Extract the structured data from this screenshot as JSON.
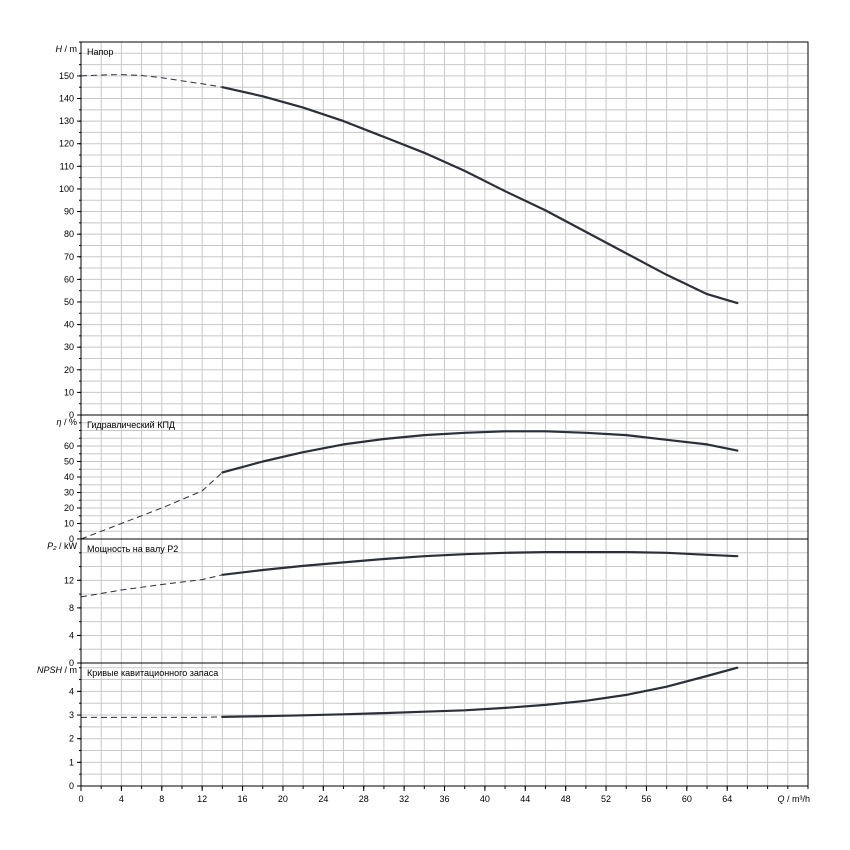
{
  "colors": {
    "curve": "#2b2f3a",
    "grid": "#c8c8c8",
    "frame": "#000000"
  },
  "chart_data": {
    "type": "line",
    "x": {
      "label_italic": "Q",
      "label_unit": "/ m³/h",
      "range": [
        0,
        72
      ],
      "major_ticks": [
        0,
        4,
        8,
        12,
        16,
        20,
        24,
        28,
        32,
        36,
        40,
        44,
        48,
        52,
        56,
        60,
        64
      ],
      "tick_labels": [
        "0",
        "4",
        "8",
        "12",
        "16",
        "20",
        "24",
        "28",
        "32",
        "36",
        "40",
        "44",
        "48",
        "52",
        "56",
        "60",
        "64"
      ],
      "minor_step": 2
    },
    "grid": true,
    "panels": [
      {
        "id": "head",
        "ylabel_italic": "H",
        "ylabel_unit": "/ m",
        "title": "Напор",
        "ylim": [
          0,
          165
        ],
        "yticks": [
          0,
          10,
          20,
          30,
          40,
          50,
          60,
          70,
          80,
          90,
          100,
          110,
          120,
          130,
          140,
          150
        ],
        "minor_step": 5,
        "solid_from": 14,
        "series": [
          {
            "x": [
              0,
              2,
              4,
              6,
              8,
              10,
              12,
              14,
              18,
              22,
              26,
              30,
              34,
              38,
              42,
              46,
              50,
              54,
              58,
              62,
              65
            ],
            "y": [
              150,
              150.4,
              150.6,
              150.2,
              149.2,
              147.8,
              146.5,
              145,
              141,
              136,
              130,
              123,
              116,
              108,
              99,
              90.5,
              81,
              71.5,
              62,
              53.5,
              49.5
            ]
          }
        ]
      },
      {
        "id": "efficiency",
        "ylabel_italic": "η",
        "ylabel_unit": "/ %",
        "title": "Гидравлический КПД",
        "ylim": [
          0,
          80
        ],
        "yticks": [
          0,
          10,
          20,
          30,
          40,
          50,
          60
        ],
        "minor_step": 5,
        "solid_from": 14,
        "series": [
          {
            "x": [
              0,
              4,
              8,
              12,
              14,
              18,
              22,
              26,
              30,
              34,
              38,
              42,
              46,
              50,
              54,
              58,
              62,
              65
            ],
            "y": [
              0,
              10,
              20,
              31,
              43,
              50,
              56,
              61,
              64.5,
              67,
              68.5,
              69.5,
              69.5,
              68.5,
              67,
              64,
              61,
              57
            ]
          }
        ]
      },
      {
        "id": "power",
        "ylabel_italic": "P₂",
        "ylabel_unit": "/ kW",
        "title": "Мощность на валу P2",
        "ylim": [
          0,
          18
        ],
        "yticks": [
          0,
          4,
          8,
          12
        ],
        "minor_step": 2,
        "solid_from": 14,
        "series": [
          {
            "x": [
              0,
              4,
              8,
              12,
              14,
              18,
              22,
              26,
              30,
              34,
              38,
              42,
              46,
              50,
              54,
              58,
              62,
              65
            ],
            "y": [
              9.6,
              10.6,
              11.4,
              12.1,
              12.8,
              13.5,
              14.1,
              14.6,
              15.1,
              15.5,
              15.8,
              16,
              16.1,
              16.1,
              16.1,
              16,
              15.7,
              15.5
            ]
          }
        ]
      },
      {
        "id": "npsh",
        "ylabel_italic": "NPSH",
        "ylabel_unit": "/ m",
        "title": "Кривые кавитационного запаса",
        "ylim": [
          0,
          5.2
        ],
        "yticks": [
          0,
          1,
          2,
          3,
          4
        ],
        "minor_step": 0.5,
        "solid_from": 14,
        "series": [
          {
            "x": [
              0,
              4,
              8,
              12,
              14,
              18,
              22,
              26,
              30,
              34,
              38,
              42,
              46,
              50,
              54,
              58,
              62,
              65
            ],
            "y": [
              2.9,
              2.9,
              2.9,
              2.9,
              2.92,
              2.95,
              2.99,
              3.03,
              3.08,
              3.14,
              3.2,
              3.3,
              3.43,
              3.6,
              3.85,
              4.2,
              4.65,
              5.0
            ]
          }
        ]
      }
    ]
  }
}
